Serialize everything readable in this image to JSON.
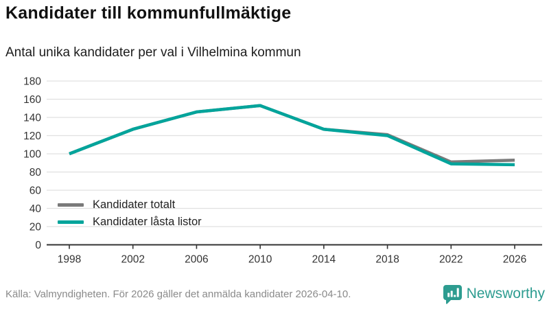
{
  "header": {
    "title": "Kandidater till kommunfullmäktige",
    "subtitle": "Antal unika kandidater per val i Vilhelmina kommun"
  },
  "chart_data": {
    "type": "line",
    "title": "Kandidater till kommunfullmäktige",
    "subtitle": "Antal unika kandidater per val i Vilhelmina kommun",
    "x": [
      1998,
      2002,
      2006,
      2010,
      2014,
      2018,
      2022,
      2026
    ],
    "series": [
      {
        "name": "Kandidater totalt",
        "color": "#7a7a7a",
        "values": [
          100,
          127,
          146,
          153,
          127,
          121,
          91,
          93
        ]
      },
      {
        "name": "Kandidater låsta listor",
        "color": "#00a49b",
        "values": [
          100,
          127,
          146,
          153,
          127,
          120,
          89,
          88
        ]
      }
    ],
    "ylim": [
      0,
      180
    ],
    "ytick_step": 20,
    "grid": true,
    "legend_position": "inside-lower-left",
    "colors": {
      "gridline": "#e0e0e0",
      "axis": "#333333",
      "tick_label": "#333333"
    }
  },
  "legend": {
    "items": [
      {
        "label": "Kandidater totalt"
      },
      {
        "label": "Kandidater låsta listor"
      }
    ]
  },
  "footer": {
    "source": "Källa: Valmyndigheten. För 2026 gäller det anmälda kandidater 2026-04-10.",
    "brand": "Newsworthy",
    "brand_color": "#2d9c90"
  }
}
